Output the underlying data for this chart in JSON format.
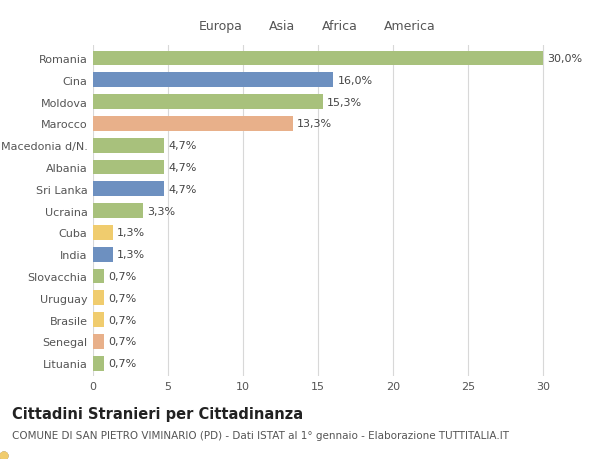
{
  "countries": [
    "Romania",
    "Cina",
    "Moldova",
    "Marocco",
    "Macedonia d/N.",
    "Albania",
    "Sri Lanka",
    "Ucraina",
    "Cuba",
    "India",
    "Slovacchia",
    "Uruguay",
    "Brasile",
    "Senegal",
    "Lituania"
  ],
  "values": [
    30.0,
    16.0,
    15.3,
    13.3,
    4.7,
    4.7,
    4.7,
    3.3,
    1.3,
    1.3,
    0.7,
    0.7,
    0.7,
    0.7,
    0.7
  ],
  "labels": [
    "30,0%",
    "16,0%",
    "15,3%",
    "13,3%",
    "4,7%",
    "4,7%",
    "4,7%",
    "3,3%",
    "1,3%",
    "1,3%",
    "0,7%",
    "0,7%",
    "0,7%",
    "0,7%",
    "0,7%"
  ],
  "continents": [
    "Europa",
    "Asia",
    "Europa",
    "Africa",
    "Europa",
    "Europa",
    "Asia",
    "Europa",
    "America",
    "Asia",
    "Europa",
    "America",
    "America",
    "Africa",
    "Europa"
  ],
  "continent_colors": {
    "Europa": "#a8c17c",
    "Asia": "#6d90c0",
    "Africa": "#e8b08a",
    "America": "#f0cc6e"
  },
  "legend_order": [
    "Europa",
    "Asia",
    "Africa",
    "America"
  ],
  "title": "Cittadini Stranieri per Cittadinanza",
  "subtitle": "COMUNE DI SAN PIETRO VIMINARIO (PD) - Dati ISTAT al 1° gennaio - Elaborazione TUTTITALIA.IT",
  "xlim": [
    0,
    32
  ],
  "xticks": [
    0,
    5,
    10,
    15,
    20,
    25,
    30
  ],
  "background_color": "#ffffff",
  "grid_color": "#d8d8d8",
  "bar_height": 0.68,
  "label_fontsize": 8.0,
  "tick_fontsize": 8.0,
  "title_fontsize": 10.5,
  "subtitle_fontsize": 7.5
}
